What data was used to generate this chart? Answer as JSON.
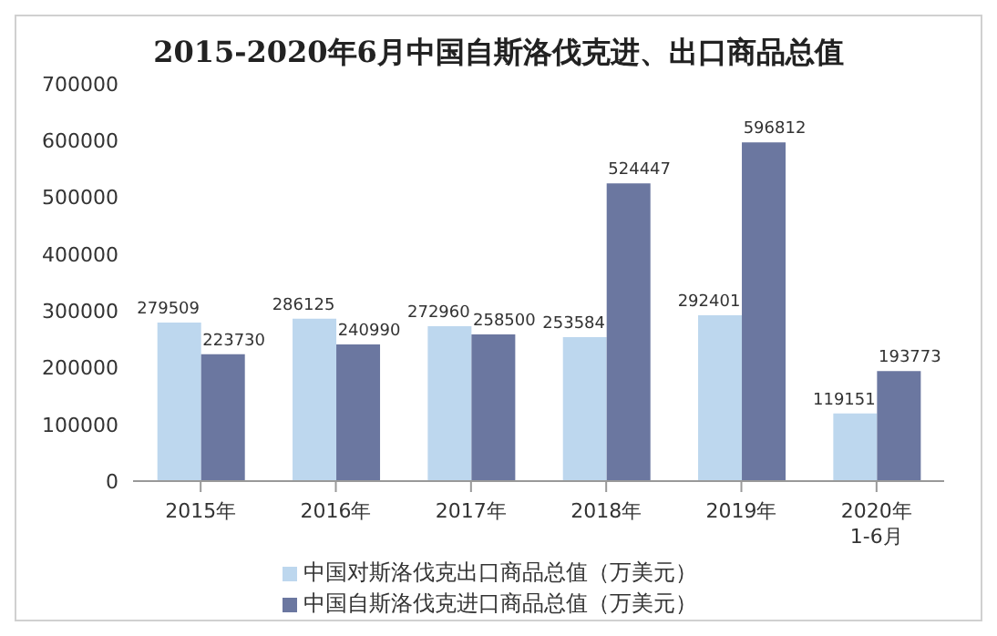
{
  "chart_data": {
    "type": "bar",
    "title": "2015-2020年6月中国自斯洛伐克进、出口商品总值",
    "categories": [
      "2015年",
      "2016年",
      "2017年",
      "2018年",
      "2019年",
      "2020年\n1-6月"
    ],
    "series": [
      {
        "name": "中国对斯洛伐克出口商品总值（万美元）",
        "color": "#bdd7ee",
        "values": [
          279509,
          286125,
          272960,
          253584,
          292401,
          119151
        ]
      },
      {
        "name": "中国自斯洛伐克进口商品总值（万美元）",
        "color": "#6b77a0",
        "values": [
          223730,
          240990,
          258500,
          524447,
          596812,
          193773
        ]
      }
    ],
    "ylim": [
      0,
      700000
    ],
    "yticks": [
      0,
      100000,
      200000,
      300000,
      400000,
      500000,
      600000,
      700000
    ],
    "grid": false,
    "legend": "bottom",
    "data_labels": true
  }
}
